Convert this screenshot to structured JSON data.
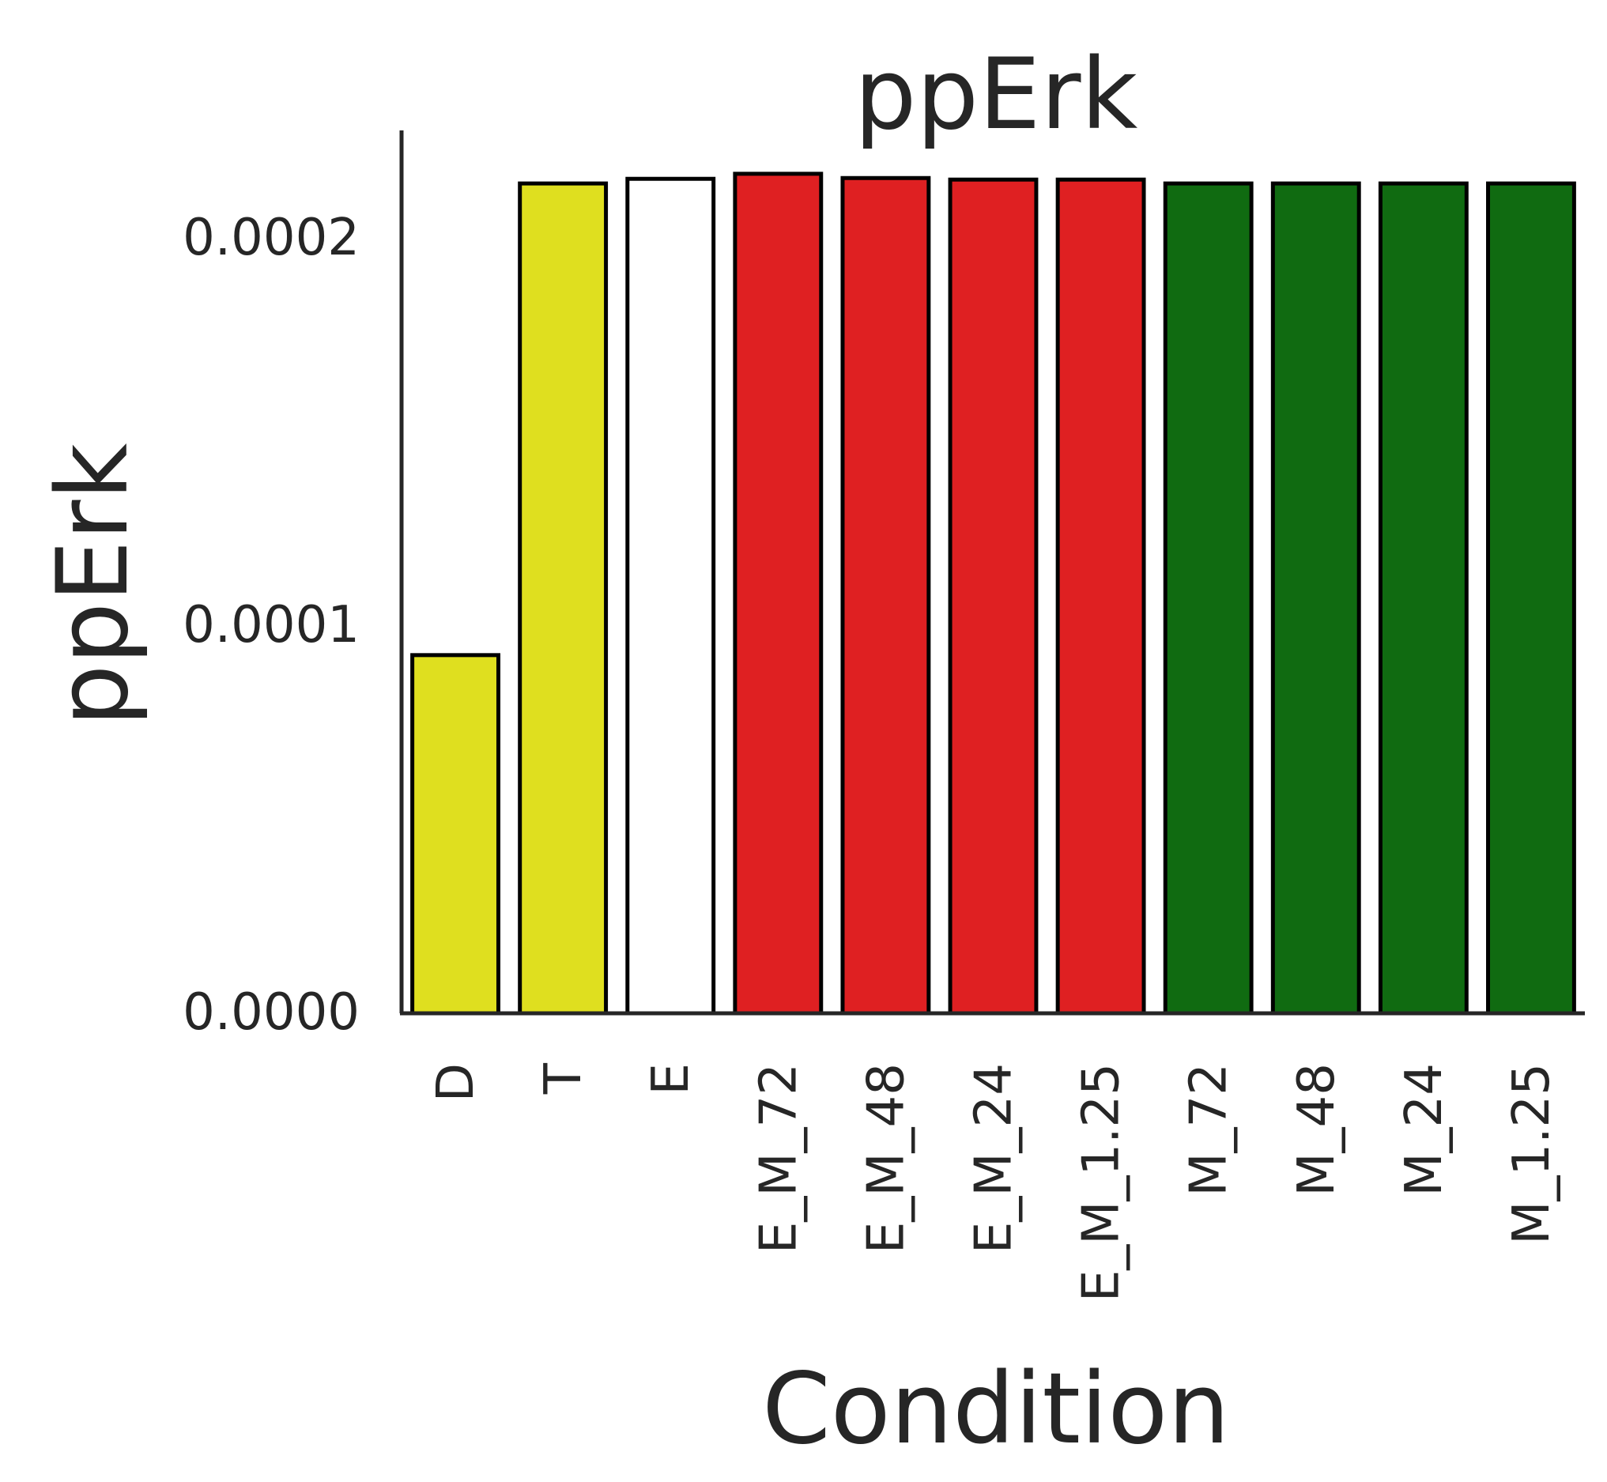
{
  "chart_data": {
    "type": "bar",
    "title": "ppErk",
    "xlabel": "Condition",
    "ylabel": "ppErk",
    "categories": [
      "D",
      "T",
      "E",
      "E_M_72",
      "E_M_48",
      "E_M_24",
      "E_M_1.25",
      "M_72",
      "M_48",
      "M_24",
      "M_1.25"
    ],
    "values": [
      9.25e-05,
      0.0002143,
      0.0002155,
      0.0002168,
      0.0002157,
      0.0002153,
      0.0002153,
      0.0002143,
      0.0002143,
      0.0002143,
      0.0002143
    ],
    "colors": [
      "#dfdf1f",
      "#dfdf1f",
      "#ffffff",
      "#df2022",
      "#df2022",
      "#df2022",
      "#df2022",
      "#106b11",
      "#106b11",
      "#106b11",
      "#106b11"
    ],
    "ylim": [
      0,
      0.000228
    ],
    "yticks": [
      0.0,
      0.0001,
      0.0002
    ],
    "ytick_labels": [
      "0.0000",
      "0.0001",
      "0.0002"
    ],
    "grid": false,
    "legend": "none"
  }
}
